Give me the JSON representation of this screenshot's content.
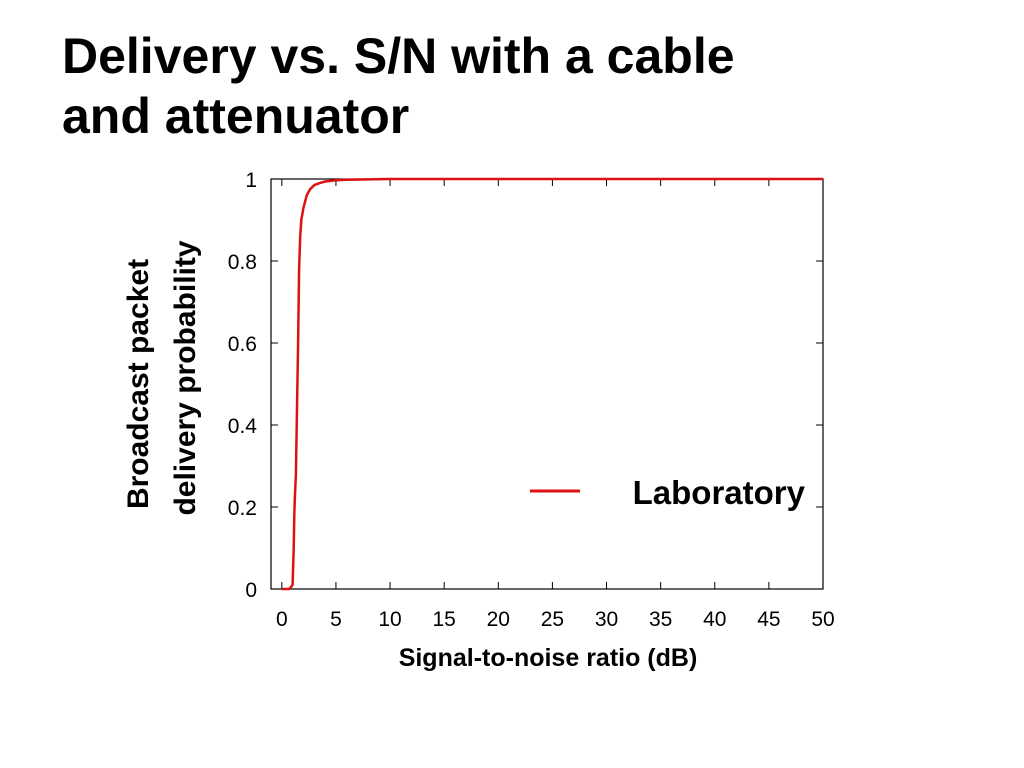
{
  "slide": {
    "title_line1": "Delivery vs. S/N with a cable",
    "title_line2": "and attenuator"
  },
  "chart_data": {
    "type": "line",
    "xlabel": "Signal-to-noise ratio (dB)",
    "ylabel_line1": "Broadcast packet",
    "ylabel_line2": "delivery probability",
    "xlim": [
      -1,
      50
    ],
    "ylim": [
      0,
      1
    ],
    "x_ticks": [
      0,
      5,
      10,
      15,
      20,
      25,
      30,
      35,
      40,
      45,
      50
    ],
    "y_ticks": [
      0,
      0.2,
      0.4,
      0.6,
      0.8,
      1
    ],
    "y_tick_labels": [
      "0",
      "0.2",
      "0.4",
      "0.6",
      "0.8",
      "1"
    ],
    "grid": false,
    "legend_position": "right",
    "series": [
      {
        "name": "Laboratory",
        "color": "#dd1111",
        "x": [
          0,
          0.7,
          1.0,
          1.1,
          1.15,
          1.2,
          1.3,
          1.5,
          1.6,
          1.7,
          1.8,
          2.0,
          2.3,
          2.6,
          3.0,
          3.5,
          4.0,
          5.0,
          6.0,
          8.0,
          10.0,
          15.0,
          20.0,
          30.0,
          40.0,
          50.0
        ],
        "y": [
          0.0,
          0.0,
          0.01,
          0.1,
          0.18,
          0.22,
          0.28,
          0.6,
          0.78,
          0.86,
          0.9,
          0.93,
          0.96,
          0.975,
          0.985,
          0.99,
          0.994,
          0.997,
          0.998,
          0.999,
          1.0,
          1.0,
          1.0,
          1.0,
          1.0,
          1.0
        ]
      }
    ]
  }
}
